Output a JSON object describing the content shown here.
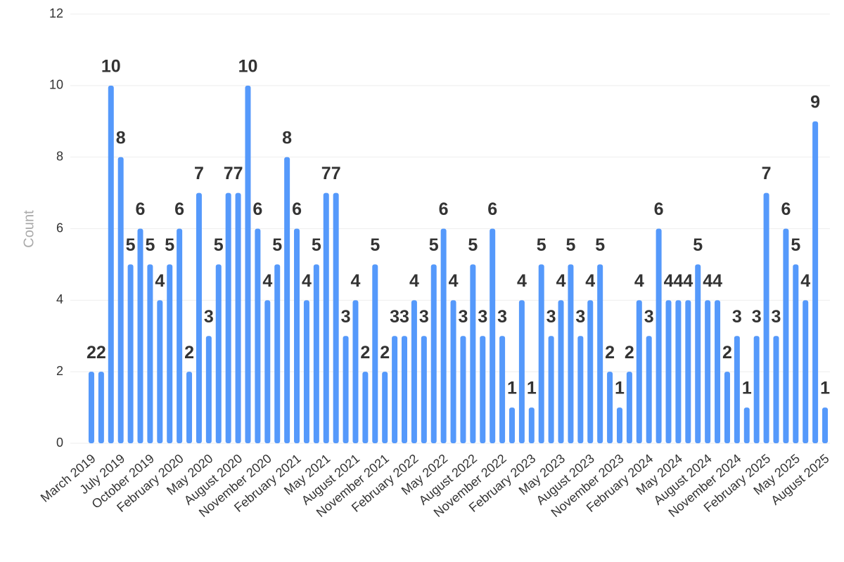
{
  "chart_data": {
    "type": "bar",
    "ylabel": "Count",
    "categories": [
      "March 2019",
      null,
      null,
      "July 2019",
      null,
      null,
      "October 2019",
      null,
      null,
      "February 2020",
      null,
      null,
      "May 2020",
      null,
      null,
      "August 2020",
      null,
      null,
      "November 2020",
      null,
      null,
      "February 2021",
      null,
      null,
      "May 2021",
      null,
      null,
      "August 2021",
      null,
      null,
      "November 2021",
      null,
      null,
      "February 2022",
      null,
      null,
      "May 2022",
      null,
      null,
      "August 2022",
      null,
      null,
      "November 2022",
      null,
      null,
      "February 2023",
      null,
      null,
      "May 2023",
      null,
      null,
      "August 2023",
      null,
      null,
      "November 2023",
      null,
      null,
      "February 2024",
      null,
      null,
      "May 2024",
      null,
      null,
      "August 2024",
      null,
      null,
      "November 2024",
      null,
      null,
      "February 2025",
      null,
      null,
      "May 2025",
      null,
      null,
      "August 2025"
    ],
    "values": [
      2,
      2,
      10,
      8,
      5,
      6,
      5,
      4,
      5,
      6,
      2,
      7,
      3,
      5,
      7,
      7,
      10,
      6,
      4,
      5,
      8,
      6,
      4,
      5,
      7,
      7,
      3,
      4,
      2,
      5,
      2,
      3,
      3,
      4,
      3,
      5,
      6,
      4,
      3,
      5,
      3,
      6,
      3,
      1,
      4,
      1,
      5,
      3,
      4,
      5,
      3,
      4,
      5,
      2,
      1,
      2,
      4,
      3,
      6,
      4,
      4,
      4,
      5,
      4,
      4,
      2,
      3,
      1,
      3,
      7,
      3,
      6,
      5,
      4,
      9,
      1
    ],
    "color": "#5599fb",
    "ylim": [
      0,
      12
    ],
    "yticks": [
      0,
      2,
      4,
      6,
      8,
      10,
      12
    ],
    "grid": true
  }
}
